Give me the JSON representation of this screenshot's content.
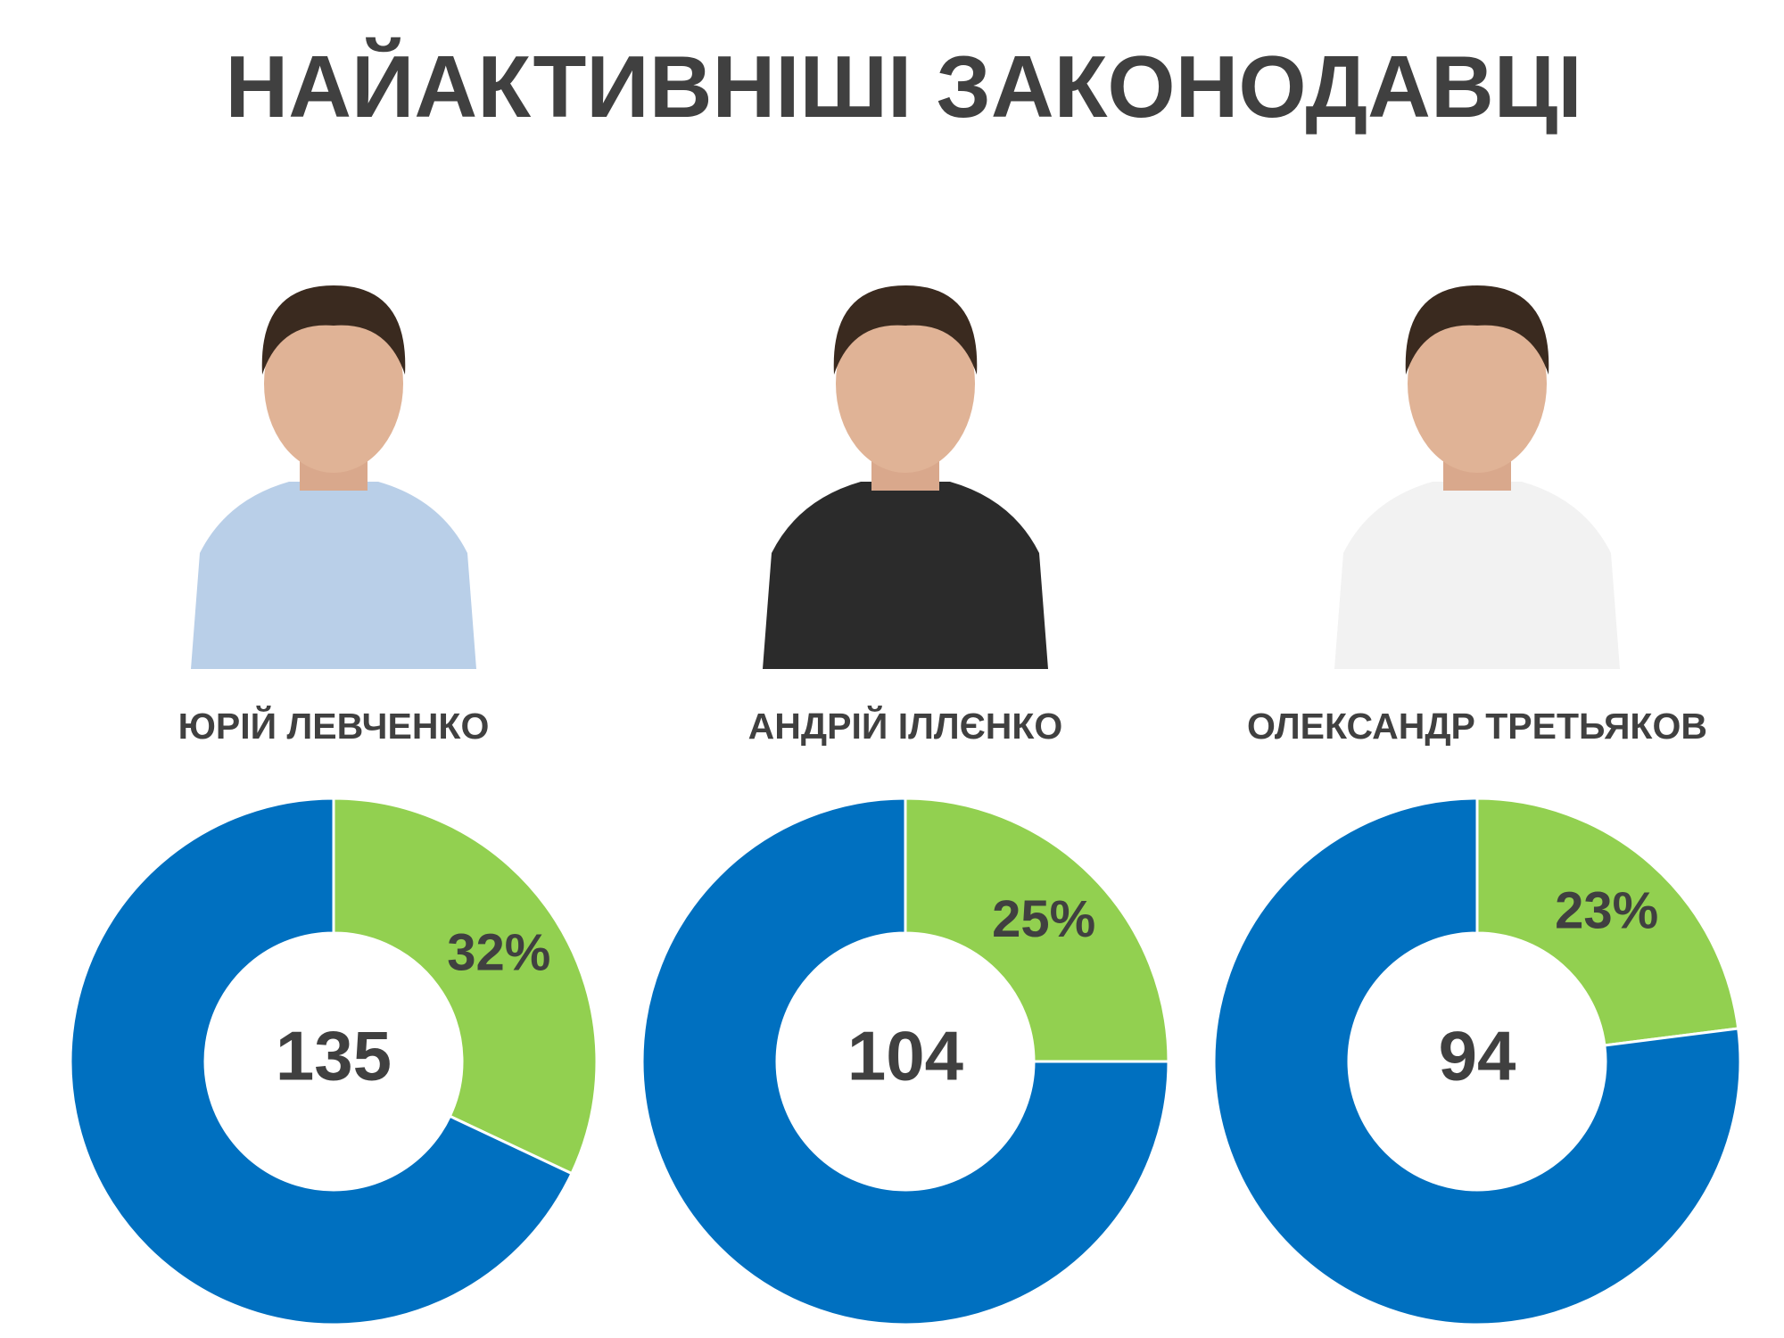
{
  "title": "НАЙАКТИВНІШІ ЗАКОНОДАВЦІ",
  "chart_data": [
    {
      "type": "donut",
      "title": "ЮРІЙ ЛЕВЧЕНКО",
      "center_label": 135,
      "values": [
        32,
        68
      ],
      "value_labels": [
        "32%",
        null
      ],
      "colors": [
        "#92d050",
        "#0070c0"
      ]
    },
    {
      "type": "donut",
      "title": "АНДРІЙ ІЛЛЄНКО",
      "center_label": 104,
      "values": [
        25,
        75
      ],
      "value_labels": [
        "25%",
        null
      ],
      "colors": [
        "#92d050",
        "#0070c0"
      ]
    },
    {
      "type": "donut",
      "title": "ОЛЕКСАНДР ТРЕТЬЯКОВ",
      "center_label": 94,
      "values": [
        23,
        77
      ],
      "value_labels": [
        "23%",
        null
      ],
      "colors": [
        "#92d050",
        "#0070c0"
      ]
    }
  ]
}
